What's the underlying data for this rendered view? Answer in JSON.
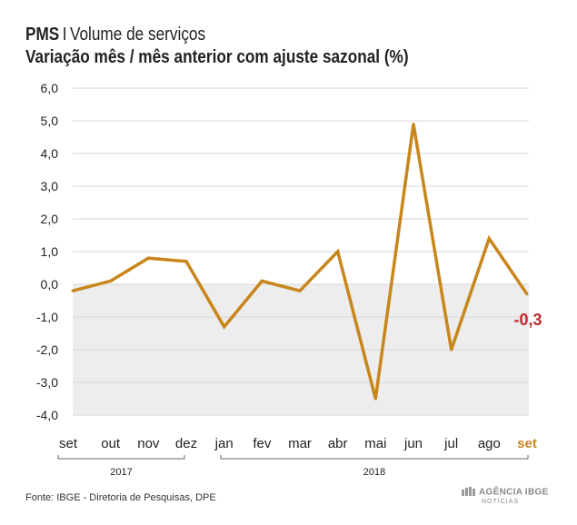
{
  "header": {
    "brand": "PMS",
    "separator": "I",
    "title": "Volume de serviços",
    "subtitle": "Variação mês / mês anterior com ajuste sazonal (%)"
  },
  "footer": {
    "source": "Fonte: IBGE - Diretoria de Pesquisas, DPE",
    "logo_line1": "AGÊNCIA IBGE",
    "logo_line2": "NOTÍCIAS"
  },
  "colors": {
    "line": "#C8861C",
    "highlight_label": "#C8861C",
    "last_value": "#C0282D",
    "negative_band": "#EDEDED",
    "grid": "#D6D6D6"
  },
  "chart_data": {
    "type": "line",
    "title": "Variação mês / mês anterior com ajuste sazonal (%)",
    "categories": [
      "set",
      "out",
      "nov",
      "dez",
      "jan",
      "fev",
      "mar",
      "abr",
      "mai",
      "jun",
      "jul",
      "ago",
      "set"
    ],
    "year_groups": [
      {
        "label": "2017",
        "from": 0,
        "to": 3
      },
      {
        "label": "2018",
        "from": 4,
        "to": 12
      }
    ],
    "series": [
      {
        "values": [
          -0.2,
          0.1,
          0.8,
          0.7,
          -1.3,
          0.1,
          -0.2,
          1.0,
          -3.5,
          4.9,
          -2.0,
          1.4,
          -0.3
        ]
      }
    ],
    "ylim": [
      -4.0,
      6.0
    ],
    "yticks": [
      "6,0",
      "5,0",
      "4,0",
      "3,0",
      "2,0",
      "1,0",
      "0,0",
      "-1,0",
      "-2,0",
      "-3,0",
      "-4,0"
    ],
    "ytick_values": [
      6,
      5,
      4,
      3,
      2,
      1,
      0,
      -1,
      -2,
      -3,
      -4
    ],
    "last_value_label": "-0,3",
    "highlighted_category_index": 12,
    "grid": true,
    "negative_region_shaded": true
  }
}
